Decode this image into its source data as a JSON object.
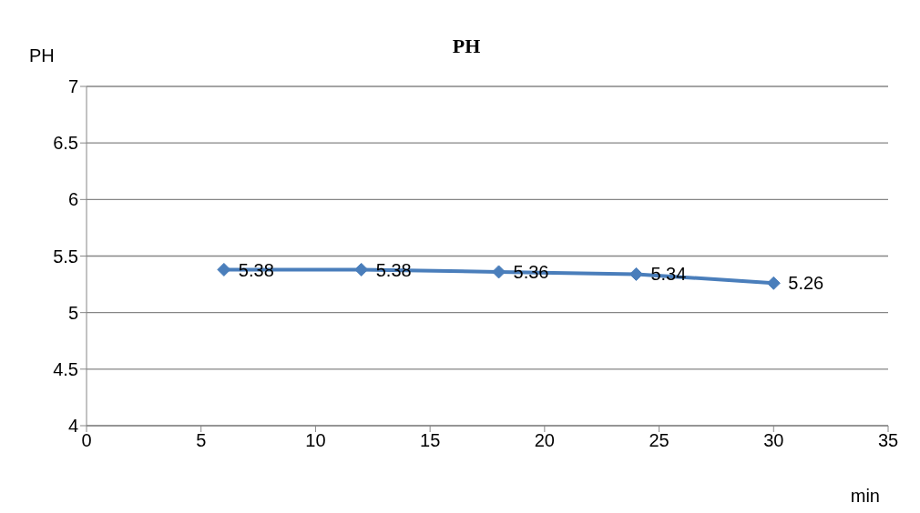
{
  "chart_data": {
    "type": "line",
    "title": "PH",
    "xlabel": "min",
    "ylabel": "PH",
    "x": [
      6,
      12,
      18,
      24,
      30
    ],
    "series": [
      {
        "color": "#4a7ebb",
        "values": [
          5.38,
          5.38,
          5.36,
          5.34,
          5.26
        ]
      }
    ],
    "xlim": [
      0,
      35
    ],
    "xticks": [
      0,
      5,
      10,
      15,
      20,
      25,
      30,
      35
    ],
    "ylim": [
      4,
      7
    ],
    "yticks": [
      4,
      4.5,
      5,
      5.5,
      6,
      6.5,
      7
    ],
    "grid": "y",
    "marker": "diamond",
    "line_style": "solid",
    "data_labels": true,
    "legend": false
  }
}
